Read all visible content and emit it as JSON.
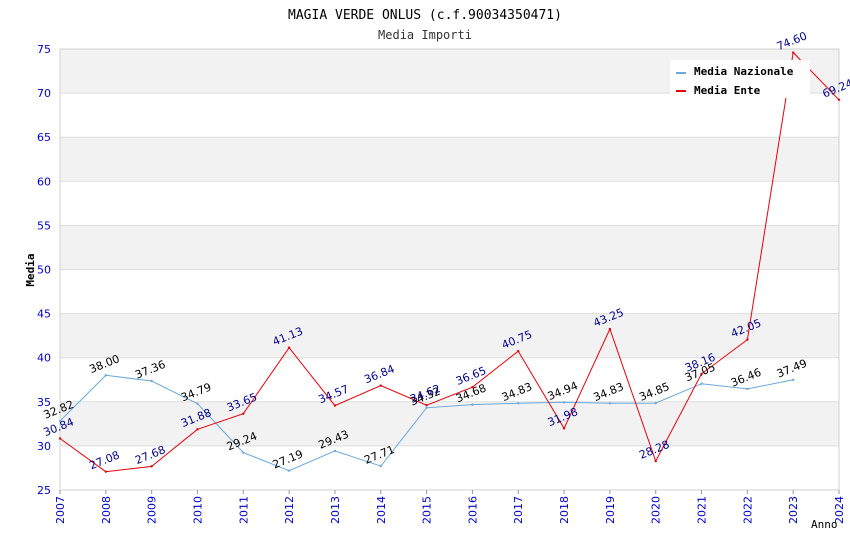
{
  "chart_data": {
    "type": "line",
    "title": "MAGIA VERDE ONLUS (c.f.90034350471)",
    "subtitle": "Media Importi",
    "xlabel": "Anno",
    "ylabel": "Media",
    "xlim": [
      2007,
      2024
    ],
    "ylim": [
      25,
      75
    ],
    "x_ticks": [
      "2007",
      "2008",
      "2009",
      "2010",
      "2011",
      "2012",
      "2013",
      "2014",
      "2015",
      "2016",
      "2017",
      "2018",
      "2019",
      "2020",
      "2021",
      "2022",
      "2023",
      "2024"
    ],
    "y_ticks": [
      "25",
      "30",
      "35",
      "40",
      "45",
      "50",
      "55",
      "60",
      "65",
      "70",
      "75"
    ],
    "grid": true,
    "legend_position": "top-right",
    "series": [
      {
        "name": "Media Nazionale",
        "color": "#6aa8dc",
        "label_color": "#000000",
        "x": [
          2007,
          2008,
          2009,
          2010,
          2011,
          2012,
          2013,
          2014,
          2015,
          2016,
          2017,
          2018,
          2019,
          2020,
          2021,
          2022,
          2023
        ],
        "values": [
          32.82,
          38.0,
          37.36,
          34.79,
          29.24,
          27.19,
          29.43,
          27.71,
          34.32,
          34.68,
          34.83,
          34.94,
          34.83,
          34.85,
          37.05,
          36.46,
          37.49
        ],
        "labels": [
          "32.82",
          "38.00",
          "37.36",
          "34.79",
          "29.24",
          "27.19",
          "29.43",
          "27.71",
          "34.32",
          "34.68",
          "34.83",
          "34.94",
          "34.83",
          "34.85",
          "37.05",
          "36.46",
          "37.49"
        ]
      },
      {
        "name": "Media Ente",
        "color": "#e8000b",
        "label_color": "#00008b",
        "x": [
          2007,
          2008,
          2009,
          2010,
          2011,
          2012,
          2013,
          2014,
          2015,
          2016,
          2017,
          2018,
          2019,
          2020,
          2021,
          2022,
          2023,
          2024
        ],
        "values": [
          30.84,
          27.08,
          27.68,
          31.88,
          33.65,
          41.13,
          34.57,
          36.84,
          34.62,
          36.65,
          40.75,
          31.98,
          43.25,
          28.28,
          38.16,
          42.05,
          74.6,
          69.24
        ],
        "labels": [
          "30.84",
          "27.08",
          "27.68",
          "31.88",
          "33.65",
          "41.13",
          "34.57",
          "36.84",
          "34.62",
          "36.65",
          "40.75",
          "31.98",
          "43.25",
          "28.28",
          "38.16",
          "42.05",
          "74.60",
          "69.24"
        ]
      }
    ]
  }
}
